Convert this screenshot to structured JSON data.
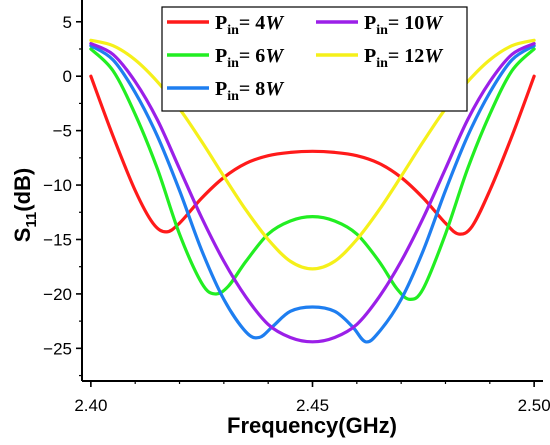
{
  "chart_data": {
    "type": "line",
    "xlabel": "Frequency(GHz)",
    "ylabel_main": "S",
    "ylabel_sub": "11",
    "ylabel_tail": "(dB)",
    "xlim": [
      2.398,
      2.502
    ],
    "ylim": [
      -28,
      7
    ],
    "x_ticks": [
      2.4,
      2.45,
      2.5
    ],
    "x_tick_labels": [
      "2.40",
      "2.45",
      "2.50"
    ],
    "y_ticks": [
      5,
      0,
      -5,
      -10,
      -15,
      -20,
      -25
    ],
    "y_tick_labels": [
      "5",
      "0",
      "−5",
      "−10",
      "−15",
      "−20",
      "−25"
    ],
    "grid": false,
    "legend_placement": "top",
    "legend_prefix": "P",
    "legend_sub": "in",
    "legend_eq": "= ",
    "legend_unit": "W",
    "series": [
      {
        "name": "4",
        "color": "#ff1a1a",
        "x": [
          2.4,
          2.405,
          2.41,
          2.414,
          2.417,
          2.42,
          2.425,
          2.43,
          2.435,
          2.44,
          2.445,
          2.45,
          2.455,
          2.46,
          2.465,
          2.47,
          2.475,
          2.48,
          2.483,
          2.486,
          2.49,
          2.495,
          2.5
        ],
        "y": [
          0,
          -5.5,
          -10.5,
          -13.5,
          -14.3,
          -13.5,
          -11.2,
          -9.3,
          -8.0,
          -7.3,
          -7.0,
          -6.9,
          -7.0,
          -7.3,
          -8.0,
          -9.3,
          -11.2,
          -13.5,
          -14.5,
          -13.8,
          -10.5,
          -5.5,
          0
        ]
      },
      {
        "name": "6",
        "color": "#22ee22",
        "x": [
          2.4,
          2.405,
          2.41,
          2.415,
          2.42,
          2.425,
          2.428,
          2.431,
          2.435,
          2.44,
          2.445,
          2.45,
          2.455,
          2.46,
          2.465,
          2.469,
          2.472,
          2.475,
          2.48,
          2.485,
          2.49,
          2.495,
          2.5
        ],
        "y": [
          2.5,
          0.5,
          -3.5,
          -8.5,
          -14.5,
          -19.0,
          -20.0,
          -19.3,
          -17.0,
          -14.5,
          -13.3,
          -12.9,
          -13.3,
          -14.5,
          -17.0,
          -19.5,
          -20.5,
          -19.5,
          -14.5,
          -8.5,
          -3.5,
          0.5,
          2.5
        ]
      },
      {
        "name": "8",
        "color": "#1e7ef0",
        "x": [
          2.4,
          2.405,
          2.41,
          2.415,
          2.42,
          2.425,
          2.43,
          2.435,
          2.438,
          2.441,
          2.445,
          2.45,
          2.455,
          2.459,
          2.462,
          2.465,
          2.47,
          2.475,
          2.48,
          2.485,
          2.49,
          2.495,
          2.5
        ],
        "y": [
          2.8,
          1.5,
          -1.5,
          -5.5,
          -10.5,
          -16.0,
          -20.5,
          -23.5,
          -24.0,
          -23.0,
          -21.6,
          -21.2,
          -21.6,
          -23.0,
          -24.4,
          -23.5,
          -20.5,
          -16.0,
          -10.5,
          -5.5,
          -1.5,
          1.5,
          2.8
        ]
      },
      {
        "name": "10",
        "color": "#9b1fe8",
        "x": [
          2.4,
          2.405,
          2.41,
          2.415,
          2.42,
          2.425,
          2.43,
          2.435,
          2.44,
          2.445,
          2.45,
          2.455,
          2.46,
          2.465,
          2.47,
          2.475,
          2.48,
          2.485,
          2.49,
          2.495,
          2.5
        ],
        "y": [
          3.0,
          2.0,
          -0.5,
          -4.0,
          -8.5,
          -13.0,
          -17.0,
          -20.3,
          -22.8,
          -24.0,
          -24.4,
          -24.0,
          -22.8,
          -20.3,
          -17.0,
          -13.0,
          -8.5,
          -4.0,
          -0.5,
          2.0,
          3.0
        ]
      },
      {
        "name": "12",
        "color": "#f5f01a",
        "x": [
          2.4,
          2.405,
          2.41,
          2.415,
          2.42,
          2.425,
          2.43,
          2.435,
          2.44,
          2.445,
          2.45,
          2.455,
          2.46,
          2.465,
          2.47,
          2.475,
          2.48,
          2.485,
          2.49,
          2.495,
          2.5
        ],
        "y": [
          3.3,
          2.8,
          1.5,
          -0.5,
          -3.0,
          -6.0,
          -9.2,
          -12.3,
          -15.0,
          -17.0,
          -17.7,
          -17.0,
          -15.0,
          -12.3,
          -9.2,
          -6.0,
          -3.0,
          -0.5,
          1.5,
          2.8,
          3.3
        ]
      }
    ],
    "legend_order": [
      {
        "series": 0,
        "col": 0,
        "row": 0
      },
      {
        "series": 3,
        "col": 1,
        "row": 0
      },
      {
        "series": 1,
        "col": 0,
        "row": 1
      },
      {
        "series": 4,
        "col": 1,
        "row": 1
      },
      {
        "series": 2,
        "col": 0,
        "row": 2
      }
    ]
  }
}
